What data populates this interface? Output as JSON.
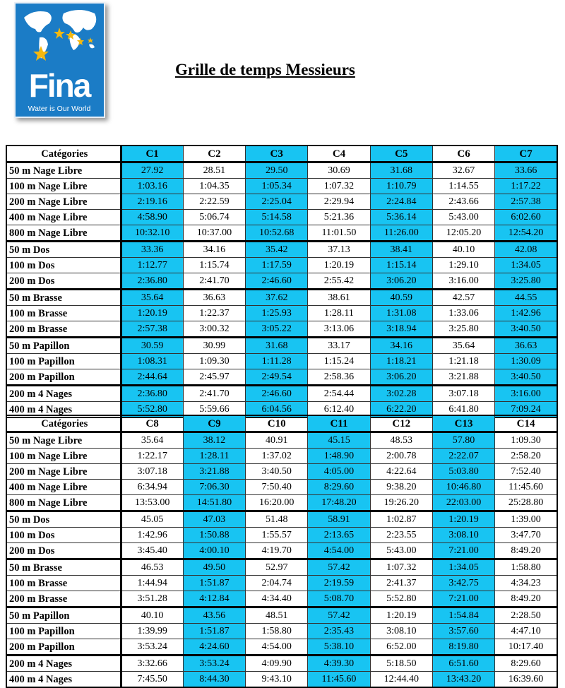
{
  "logo": {
    "text": "Fina",
    "tagline": "Water is Our World",
    "colors": {
      "bg": "#1b7cc6",
      "star": "#f5b80f"
    }
  },
  "title": "Grille de temps Messieurs",
  "highlight_color": "#18c4f2",
  "tables": [
    {
      "header": "Catégories",
      "columns": [
        "C1",
        "C2",
        "C3",
        "C4",
        "C5",
        "C6",
        "C7"
      ],
      "highlight": [
        true,
        false,
        true,
        false,
        true,
        false,
        true
      ],
      "groups": [
        [
          {
            "label": "50 m Nage Libre",
            "values": [
              "27.92",
              "28.51",
              "29.50",
              "30.69",
              "31.68",
              "32.67",
              "33.66"
            ]
          },
          {
            "label": "100 m Nage Libre",
            "values": [
              "1:03.16",
              "1:04.35",
              "1:05.34",
              "1:07.32",
              "1:10.79",
              "1:14.55",
              "1:17.22"
            ]
          },
          {
            "label": "200 m Nage Libre",
            "values": [
              "2:19.16",
              "2:22.59",
              "2:25.04",
              "2:29.94",
              "2:24.84",
              "2:43.66",
              "2:57.38"
            ]
          },
          {
            "label": "400 m Nage Libre",
            "values": [
              "4:58.90",
              "5:06.74",
              "5:14.58",
              "5:21.36",
              "5:36.14",
              "5:43.00",
              "6:02.60"
            ]
          },
          {
            "label": "800 m Nage Libre",
            "values": [
              "10:32.10",
              "10:37.00",
              "10:52.68",
              "11:01.50",
              "11:26.00",
              "12:05.20",
              "12:54.20"
            ]
          }
        ],
        [
          {
            "label": "50 m Dos",
            "values": [
              "33.36",
              "34.16",
              "35.42",
              "37.13",
              "38.41",
              "40.10",
              "42.08"
            ]
          },
          {
            "label": "100 m Dos",
            "values": [
              "1:12.77",
              "1:15.74",
              "1:17.59",
              "1:20.19",
              "1:15.14",
              "1:29.10",
              "1:34.05"
            ]
          },
          {
            "label": "200 m Dos",
            "values": [
              "2:36.80",
              "2:41.70",
              "2:46.60",
              "2:55.42",
              "3:06.20",
              "3:16.00",
              "3:25.80"
            ]
          }
        ],
        [
          {
            "label": "50 m Brasse",
            "values": [
              "35.64",
              "36.63",
              "37.62",
              "38.61",
              "40.59",
              "42.57",
              "44.55"
            ]
          },
          {
            "label": "100 m Brasse",
            "values": [
              "1:20.19",
              "1:22.37",
              "1:25.93",
              "1:28.11",
              "1:31.08",
              "1:33.06",
              "1:42.96"
            ]
          },
          {
            "label": "200 m Brasse",
            "values": [
              "2:57.38",
              "3:00.32",
              "3:05.22",
              "3:13.06",
              "3:18.94",
              "3:25.80",
              "3:40.50"
            ]
          }
        ],
        [
          {
            "label": "50 m Papillon",
            "values": [
              "30.59",
              "30.99",
              "31.68",
              "33.17",
              "34.16",
              "35.64",
              "36.63"
            ]
          },
          {
            "label": "100 m Papillon",
            "values": [
              "1:08.31",
              "1:09.30",
              "1:11.28",
              "1:15.24",
              "1:18.21",
              "1:21.18",
              "1:30.09"
            ]
          },
          {
            "label": "200 m Papillon",
            "values": [
              "2:44.64",
              "2:45.97",
              "2:49.54",
              "2:58.36",
              "3:06.20",
              "3:21.88",
              "3:40.50"
            ]
          }
        ],
        [
          {
            "label": "200 m 4 Nages",
            "values": [
              "2:36.80",
              "2:41.70",
              "2:46.60",
              "2:54.44",
              "3:02.28",
              "3:07.18",
              "3:16.00"
            ]
          },
          {
            "label": "400 m 4 Nages",
            "values": [
              "5:52.80",
              "5:59.66",
              "6:04.56",
              "6:12.40",
              "6:22.20",
              "6:41.80",
              "7:09.24"
            ]
          }
        ]
      ]
    },
    {
      "header": "Catégories",
      "columns": [
        "C8",
        "C9",
        "C10",
        "C11",
        "C12",
        "C13",
        "C14"
      ],
      "highlight": [
        false,
        true,
        false,
        true,
        false,
        true,
        false
      ],
      "groups": [
        [
          {
            "label": "50 m Nage Libre",
            "values": [
              "35.64",
              "38.12",
              "40.91",
              "45.15",
              "48.53",
              "57.80",
              "1:09.30"
            ]
          },
          {
            "label": "100 m Nage Libre",
            "values": [
              "1:22.17",
              "1:28.11",
              "1:37.02",
              "1:48.90",
              "2:00.78",
              "2:22.07",
              "2:58.20"
            ]
          },
          {
            "label": "200 m Nage Libre",
            "values": [
              "3:07.18",
              "3:21.88",
              "3:40.50",
              "4:05.00",
              "4:22.64",
              "5:03.80",
              "7:52.40"
            ]
          },
          {
            "label": "400 m Nage Libre",
            "values": [
              "6:34.94",
              "7:06.30",
              "7:50.40",
              "8:29.60",
              "9:38.20",
              "10:46.80",
              "11:45.60"
            ]
          },
          {
            "label": "800 m Nage Libre",
            "values": [
              "13:53.00",
              "14:51.80",
              "16:20.00",
              "17:48.20",
              "19:26.20",
              "22:03.00",
              "25:28.80"
            ]
          }
        ],
        [
          {
            "label": "50 m Dos",
            "values": [
              "45.05",
              "47.03",
              "51.48",
              "58.91",
              "1:02.87",
              "1:20.19",
              "1:39.00"
            ]
          },
          {
            "label": "100 m Dos",
            "values": [
              "1:42.96",
              "1:50.88",
              "1:55.57",
              "2:13.65",
              "2:23.55",
              "3:08.10",
              "3:47.70"
            ]
          },
          {
            "label": "200 m Dos",
            "values": [
              "3:45.40",
              "4:00.10",
              "4:19.70",
              "4:54.00",
              "5:43.00",
              "7:21.00",
              "8:49.20"
            ]
          }
        ],
        [
          {
            "label": "50 m Brasse",
            "values": [
              "46.53",
              "49.50",
              "52.97",
              "57.42",
              "1:07.32",
              "1:34.05",
              "1:58.80"
            ]
          },
          {
            "label": "100 m Brasse",
            "values": [
              "1:44.94",
              "1:51.87",
              "2:04.74",
              "2:19.59",
              "2:41.37",
              "3:42.75",
              "4:34.23"
            ]
          },
          {
            "label": "200 m Brasse",
            "values": [
              "3:51.28",
              "4:12.84",
              "4:34.40",
              "5:08.70",
              "5:52.80",
              "7:21.00",
              "8:49.20"
            ]
          }
        ],
        [
          {
            "label": "50 m Papillon",
            "values": [
              "40.10",
              "43.56",
              "48.51",
              "57.42",
              "1:20.19",
              "1:54.84",
              "2:28.50"
            ]
          },
          {
            "label": "100 m Papillon",
            "values": [
              "1:39.99",
              "1:51.87",
              "1:58.80",
              "2:35.43",
              "3:08.10",
              "3:57.60",
              "4:47.10"
            ]
          },
          {
            "label": "200 m Papillon",
            "values": [
              "3:53.24",
              "4:24.60",
              "4:54.00",
              "5:38.10",
              "6:52.00",
              "8:19.80",
              "10:17.40"
            ]
          }
        ],
        [
          {
            "label": "200 m 4 Nages",
            "values": [
              "3:32.66",
              "3:53.24",
              "4:09.90",
              "4:39.30",
              "5:18.50",
              "6:51.60",
              "8:29.60"
            ]
          },
          {
            "label": "400 m 4 Nages",
            "values": [
              "7:45.50",
              "8:44.30",
              "9:43.10",
              "11:45.60",
              "12:44.40",
              "13:43.20",
              "16:39.60"
            ]
          }
        ]
      ]
    }
  ]
}
